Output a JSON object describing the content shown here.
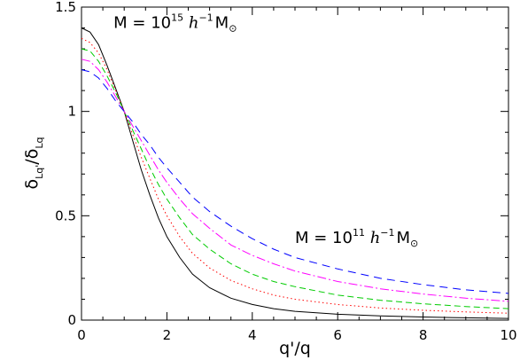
{
  "chart_data": {
    "type": "line",
    "title": "",
    "xlabel": "q'/q",
    "ylabel_main": "δ",
    "ylabel_sub1": "Lq'",
    "ylabel_slash": "/",
    "ylabel_sub2": "Lq",
    "xlim": [
      0,
      10
    ],
    "ylim": [
      0,
      1.5
    ],
    "x_ticks": [
      {
        "value": 0,
        "label": "0"
      },
      {
        "value": 2,
        "label": "2"
      },
      {
        "value": 4,
        "label": "4"
      },
      {
        "value": 6,
        "label": "6"
      },
      {
        "value": 8,
        "label": "8"
      },
      {
        "value": 10,
        "label": "10"
      }
    ],
    "y_ticks": [
      {
        "value": 0,
        "label": "0"
      },
      {
        "value": 0.5,
        "label": "0.5"
      },
      {
        "value": 1,
        "label": "1"
      },
      {
        "value": 1.5,
        "label": "1.5"
      }
    ],
    "grid": false,
    "annotations": [
      {
        "prefix": "M = 10",
        "exponent": "15",
        "h": "h",
        "hexp": "−1",
        "msun": "M",
        "sun": "⊙",
        "x": 0.75,
        "y": 1.4
      },
      {
        "prefix": "M = 10",
        "exponent": "11",
        "h": "h",
        "hexp": "−1",
        "msun": "M",
        "sun": "⊙",
        "x": 5.0,
        "y": 0.37
      }
    ],
    "series": [
      {
        "color": "#000000",
        "dash": "solid",
        "points": [
          [
            0,
            1.4
          ],
          [
            0.2,
            1.38
          ],
          [
            0.4,
            1.32
          ],
          [
            0.6,
            1.22
          ],
          [
            0.8,
            1.11
          ],
          [
            1.0,
            1.0
          ],
          [
            1.2,
            0.86
          ],
          [
            1.4,
            0.72
          ],
          [
            1.6,
            0.6
          ],
          [
            1.8,
            0.49
          ],
          [
            2.0,
            0.4
          ],
          [
            2.3,
            0.3
          ],
          [
            2.6,
            0.22
          ],
          [
            3.0,
            0.155
          ],
          [
            3.5,
            0.105
          ],
          [
            4.0,
            0.075
          ],
          [
            4.5,
            0.055
          ],
          [
            5.0,
            0.042
          ],
          [
            6.0,
            0.028
          ],
          [
            7.0,
            0.02
          ],
          [
            8.0,
            0.015
          ],
          [
            9.0,
            0.011
          ],
          [
            10.0,
            0.008
          ]
        ]
      },
      {
        "color": "#ff0000",
        "dash": "dotted",
        "points": [
          [
            0,
            1.35
          ],
          [
            0.2,
            1.33
          ],
          [
            0.4,
            1.28
          ],
          [
            0.6,
            1.2
          ],
          [
            0.8,
            1.1
          ],
          [
            1.0,
            1.0
          ],
          [
            1.2,
            0.89
          ],
          [
            1.4,
            0.78
          ],
          [
            1.6,
            0.68
          ],
          [
            1.8,
            0.58
          ],
          [
            2.0,
            0.5
          ],
          [
            2.3,
            0.4
          ],
          [
            2.6,
            0.32
          ],
          [
            3.0,
            0.25
          ],
          [
            3.5,
            0.19
          ],
          [
            4.0,
            0.15
          ],
          [
            4.5,
            0.12
          ],
          [
            5.0,
            0.1
          ],
          [
            6.0,
            0.075
          ],
          [
            7.0,
            0.058
          ],
          [
            8.0,
            0.047
          ],
          [
            9.0,
            0.039
          ],
          [
            10.0,
            0.033
          ]
        ]
      },
      {
        "color": "#00cc00",
        "dash": "dashed",
        "points": [
          [
            0,
            1.3
          ],
          [
            0.2,
            1.29
          ],
          [
            0.4,
            1.24
          ],
          [
            0.6,
            1.17
          ],
          [
            0.8,
            1.09
          ],
          [
            1.0,
            1.0
          ],
          [
            1.2,
            0.91
          ],
          [
            1.4,
            0.82
          ],
          [
            1.6,
            0.73
          ],
          [
            1.8,
            0.65
          ],
          [
            2.0,
            0.58
          ],
          [
            2.3,
            0.49
          ],
          [
            2.6,
            0.41
          ],
          [
            3.0,
            0.34
          ],
          [
            3.5,
            0.27
          ],
          [
            4.0,
            0.22
          ],
          [
            4.5,
            0.185
          ],
          [
            5.0,
            0.16
          ],
          [
            6.0,
            0.12
          ],
          [
            7.0,
            0.095
          ],
          [
            8.0,
            0.078
          ],
          [
            9.0,
            0.065
          ],
          [
            10.0,
            0.055
          ]
        ]
      },
      {
        "color": "#ff00ff",
        "dash": "dashdot",
        "points": [
          [
            0,
            1.25
          ],
          [
            0.2,
            1.24
          ],
          [
            0.4,
            1.2
          ],
          [
            0.6,
            1.14
          ],
          [
            0.8,
            1.07
          ],
          [
            1.0,
            1.0
          ],
          [
            1.2,
            0.93
          ],
          [
            1.4,
            0.86
          ],
          [
            1.6,
            0.79
          ],
          [
            1.8,
            0.72
          ],
          [
            2.0,
            0.66
          ],
          [
            2.3,
            0.58
          ],
          [
            2.6,
            0.51
          ],
          [
            3.0,
            0.44
          ],
          [
            3.5,
            0.36
          ],
          [
            4.0,
            0.31
          ],
          [
            4.5,
            0.27
          ],
          [
            5.0,
            0.235
          ],
          [
            6.0,
            0.185
          ],
          [
            7.0,
            0.15
          ],
          [
            8.0,
            0.125
          ],
          [
            9.0,
            0.105
          ],
          [
            10.0,
            0.09
          ]
        ]
      },
      {
        "color": "#0000ff",
        "dash": "longdash",
        "points": [
          [
            0,
            1.2
          ],
          [
            0.2,
            1.19
          ],
          [
            0.4,
            1.16
          ],
          [
            0.6,
            1.11
          ],
          [
            0.8,
            1.05
          ],
          [
            1.0,
            1.0
          ],
          [
            1.2,
            0.95
          ],
          [
            1.4,
            0.89
          ],
          [
            1.6,
            0.84
          ],
          [
            1.8,
            0.78
          ],
          [
            2.0,
            0.73
          ],
          [
            2.3,
            0.66
          ],
          [
            2.6,
            0.59
          ],
          [
            3.0,
            0.52
          ],
          [
            3.5,
            0.45
          ],
          [
            4.0,
            0.39
          ],
          [
            4.5,
            0.34
          ],
          [
            5.0,
            0.3
          ],
          [
            6.0,
            0.245
          ],
          [
            7.0,
            0.2
          ],
          [
            8.0,
            0.17
          ],
          [
            9.0,
            0.145
          ],
          [
            10.0,
            0.128
          ]
        ]
      }
    ]
  }
}
